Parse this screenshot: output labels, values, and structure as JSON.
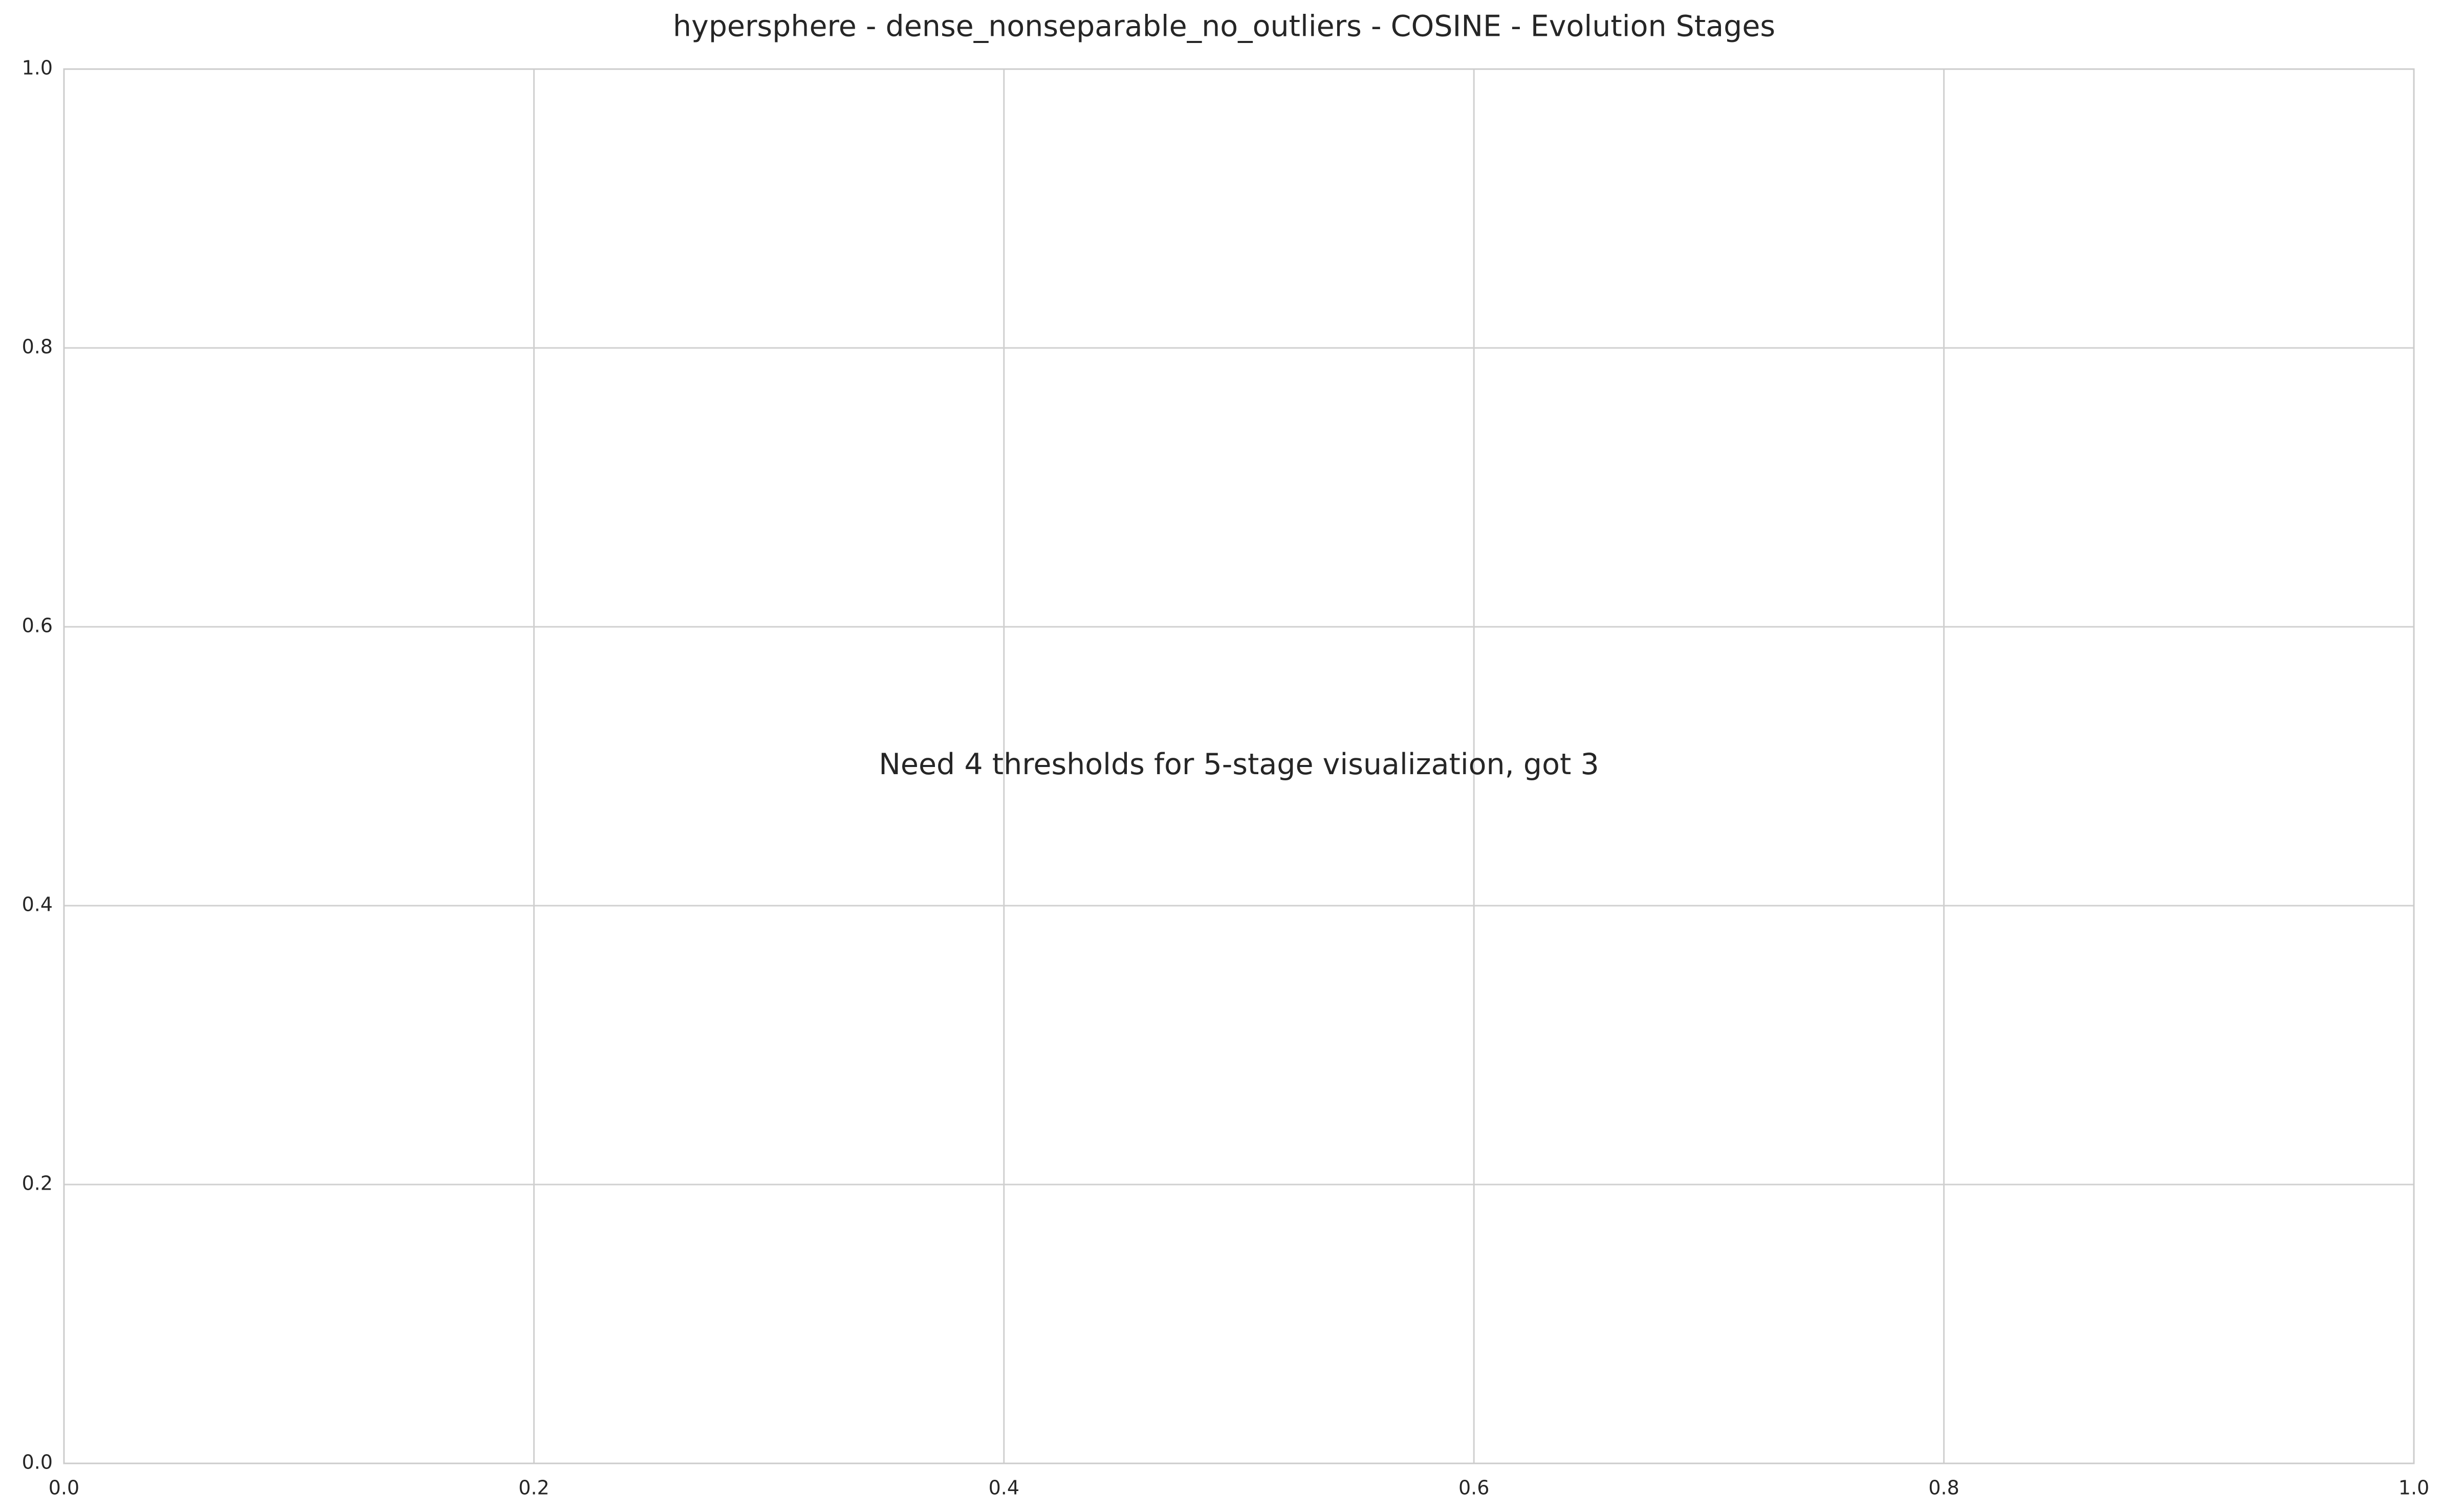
{
  "chart_data": {
    "type": "scatter",
    "title": "hypersphere - dense_nonseparable_no_outliers - COSINE - Evolution Stages",
    "xlabel": "",
    "ylabel": "",
    "xlim": [
      0.0,
      1.0
    ],
    "ylim": [
      0.0,
      1.0
    ],
    "xticks": [
      "0.0",
      "0.2",
      "0.4",
      "0.6",
      "0.8",
      "1.0"
    ],
    "yticks": [
      "0.0",
      "0.2",
      "0.4",
      "0.6",
      "0.8",
      "1.0"
    ],
    "grid": true,
    "series": [],
    "annotation": {
      "text": "Need 4 thresholds for 5-stage visualization, got 3",
      "x": 0.5,
      "y": 0.5
    }
  },
  "colors": {
    "grid": "#d0d0d0",
    "spine": "#cccccc",
    "text": "#262626",
    "background": "#ffffff"
  }
}
